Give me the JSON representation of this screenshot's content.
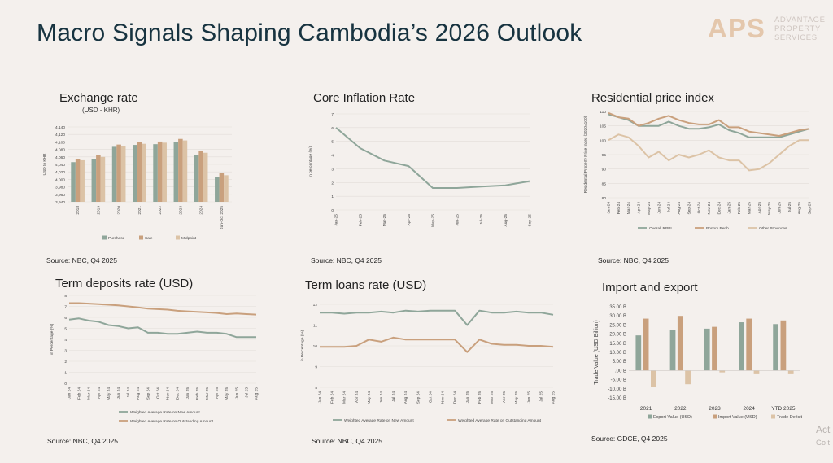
{
  "page": {
    "title": "Macro Signals Shaping Cambodia’s 2026 Outlook"
  },
  "logo": {
    "mark": "APS",
    "line1": "ADVANTAGE",
    "line2": "PROPERTY",
    "line3": "SERVICES"
  },
  "watermark": {
    "line1": "Act",
    "line2": "Go t"
  },
  "colors": {
    "purchase": "#8fa69a",
    "sale": "#c9a07d",
    "midpoint": "#dcc3a6",
    "green": "#8fa69a",
    "brown": "#c9a07d",
    "other": "#dcc3a6"
  },
  "chart_data": [
    {
      "id": "exchange",
      "type": "bar",
      "title": "Exchange rate",
      "subtitle": "(USD - KHR)",
      "source": "Source: NBC, Q4 2025",
      "ylabel": "USD to KHR",
      "ylim": [
        3940,
        4140
      ],
      "yticks": [
        3940,
        3960,
        3980,
        4000,
        4020,
        4040,
        4060,
        4080,
        4100,
        4120,
        4140
      ],
      "ytick_labels": [
        "3,940",
        "3,960",
        "3,980",
        "4,000",
        "4,020",
        "4,040",
        "4,060",
        "4,080",
        "4,100",
        "4,120",
        "4,140"
      ],
      "categories": [
        "2018",
        "2019",
        "2020",
        "2021",
        "2022",
        "2023",
        "2024",
        "Jan-Oct 2025"
      ],
      "series": [
        {
          "name": "Purchase",
          "color": "#8fa69a",
          "values": [
            4046,
            4055,
            4087,
            4092,
            4094,
            4100,
            4066,
            4006
          ]
        },
        {
          "name": "Sale",
          "color": "#c9a07d",
          "values": [
            4055,
            4066,
            4093,
            4099,
            4101,
            4108,
            4077,
            4017
          ]
        },
        {
          "name": "Midpoint",
          "color": "#dcc3a6",
          "values": [
            4051,
            4060,
            4090,
            4095,
            4098,
            4104,
            4071,
            4011
          ]
        }
      ]
    },
    {
      "id": "inflation",
      "type": "line",
      "title": "Core Inflation Rate",
      "source": "Source: NBC, Q4 2025",
      "ylabel": "in percentage (%)",
      "ylim": [
        0,
        7
      ],
      "yticks": [
        0,
        1,
        2,
        3,
        4,
        5,
        6,
        7
      ],
      "ytick_labels": [
        "0",
        "1",
        "2",
        "3",
        "4",
        "5",
        "6",
        "7"
      ],
      "categories": [
        "Jan-25",
        "Feb-25",
        "Mar-25",
        "Apr-25",
        "May-25",
        "Jun-25",
        "Jul-25",
        "Aug-25",
        "Sep-25"
      ],
      "series": [
        {
          "name": "",
          "color": "#8fa69a",
          "values": [
            6.0,
            4.5,
            3.6,
            3.2,
            1.6,
            1.6,
            1.7,
            1.8,
            2.1
          ]
        }
      ]
    },
    {
      "id": "rppi",
      "type": "line",
      "title": "Residential price index",
      "source": "Source: NBC, Q4 2025",
      "ylabel": "Residential Property Price Index (2020=100)",
      "ylim": [
        80,
        110
      ],
      "yticks": [
        80,
        85,
        90,
        95,
        100,
        105,
        110
      ],
      "ytick_labels": [
        "80",
        "85",
        "90",
        "95",
        "100",
        "105",
        "110"
      ],
      "categories": [
        "Jan-24",
        "Feb-24",
        "Mar-24",
        "Apr-24",
        "May-24",
        "Jun-24",
        "Jul-24",
        "Aug-24",
        "Sep-24",
        "Oct-24",
        "Nov-24",
        "Dec-24",
        "Jan-25",
        "Feb-25",
        "Mar-25",
        "Apr-25",
        "May-25",
        "Jun-25",
        "Jul-25",
        "Aug-25",
        "Sep-25"
      ],
      "series": [
        {
          "name": "Overall RPPI",
          "color": "#8fa69a",
          "values": [
            109,
            108,
            107,
            105,
            105,
            105,
            106.5,
            105,
            104,
            104,
            104.5,
            105.5,
            103.5,
            102.5,
            101,
            101,
            101,
            101,
            102,
            103,
            104
          ]
        },
        {
          "name": "Phnom Penh",
          "color": "#c9a07d",
          "values": [
            109.5,
            108,
            107.5,
            105,
            106,
            107.5,
            108.5,
            107,
            106,
            105.5,
            105.5,
            107,
            104.5,
            104.5,
            103,
            102.5,
            102,
            101.5,
            102.5,
            103.5,
            104
          ]
        },
        {
          "name": "Other Provinces",
          "color": "#dcc3a6",
          "values": [
            100,
            102,
            101,
            98,
            94,
            96,
            93,
            95,
            94,
            95,
            96.5,
            94,
            93,
            93,
            89.5,
            90,
            92,
            95,
            98,
            100,
            100
          ]
        }
      ]
    },
    {
      "id": "deposits",
      "type": "line",
      "title": "Term deposits rate (USD)",
      "source": "Source: NBC, Q4 2025",
      "ylabel": "in Percentage (%)",
      "ylim": [
        0,
        8
      ],
      "yticks": [
        0,
        1,
        2,
        3,
        4,
        5,
        6,
        7,
        8
      ],
      "ytick_labels": [
        "0",
        "1",
        "2",
        "3",
        "4",
        "5",
        "6",
        "7",
        "8"
      ],
      "categories": [
        "Jan 24",
        "Feb 24",
        "Mar 24",
        "Apr 24",
        "May 24",
        "Jun 24",
        "Jul 24",
        "Aug 24",
        "Sep 24",
        "Oct 24",
        "Nov 24",
        "Dec 24",
        "Jan 25",
        "Feb 25",
        "Mar 25",
        "Apr 25",
        "May 25",
        "Jun 25",
        "Jul 25",
        "Aug 25"
      ],
      "series": [
        {
          "name": "Weighted Average Rate on New Amount",
          "color": "#8fa69a",
          "values": [
            5.8,
            5.9,
            5.7,
            5.6,
            5.3,
            5.2,
            5.0,
            5.1,
            4.6,
            4.6,
            4.5,
            4.5,
            4.6,
            4.7,
            4.6,
            4.6,
            4.5,
            4.2,
            4.2,
            4.2
          ]
        },
        {
          "name": "Weighted Average Rate on Outstanding Amount",
          "color": "#c9a07d",
          "values": [
            7.3,
            7.3,
            7.25,
            7.2,
            7.15,
            7.1,
            7.0,
            6.9,
            6.8,
            6.75,
            6.7,
            6.6,
            6.55,
            6.5,
            6.45,
            6.4,
            6.3,
            6.35,
            6.3,
            6.25
          ]
        }
      ]
    },
    {
      "id": "loans",
      "type": "line",
      "title": "Term loans rate (USD)",
      "source": "Source: NBC, Q4 2025",
      "ylabel": "in Percentage (%)",
      "ylim": [
        8,
        12
      ],
      "yticks": [
        8,
        9,
        10,
        11,
        12
      ],
      "ytick_labels": [
        "8",
        "9",
        "10",
        "11",
        "12"
      ],
      "categories": [
        "Jan 24",
        "Feb 24",
        "Mar 24",
        "Apr 24",
        "May 24",
        "Jun 24",
        "Jul 24",
        "Aug 24",
        "Sep 24",
        "Oct 24",
        "Nov 24",
        "Dec 24",
        "Jan 25",
        "Feb 25",
        "Mar 25",
        "Apr 25",
        "May 25",
        "Jun 25",
        "Jul 25",
        "Aug 25"
      ],
      "series": [
        {
          "name": "Weighted Average Rate on New Amount",
          "color": "#8fa69a",
          "values": [
            11.6,
            11.6,
            11.55,
            11.6,
            11.6,
            11.65,
            11.6,
            11.7,
            11.65,
            11.7,
            11.7,
            11.7,
            11.0,
            11.7,
            11.6,
            11.6,
            11.65,
            11.6,
            11.6,
            11.5
          ]
        },
        {
          "name": "Weighted Average Rate on Outstanding Amount",
          "color": "#c9a07d",
          "values": [
            9.95,
            9.95,
            9.95,
            10.0,
            10.3,
            10.2,
            10.4,
            10.3,
            10.3,
            10.3,
            10.3,
            10.3,
            9.7,
            10.3,
            10.1,
            10.05,
            10.05,
            10.0,
            10.0,
            9.95
          ]
        }
      ]
    },
    {
      "id": "trade",
      "type": "bar",
      "title": "Import and export",
      "source": "Source: GDCE, Q4 2025",
      "ylabel": "Trade Value (USD Billion)",
      "ylim": [
        -15,
        35
      ],
      "yticks": [
        -15,
        -10,
        -5,
        0,
        5,
        10,
        15,
        20,
        25,
        30,
        35
      ],
      "ytick_labels": [
        "-15.00 B",
        "-10.00 B",
        "-5.00 B",
        ".00 B",
        "5.00 B",
        "10.00 B",
        "15.00 B",
        "20.00 B",
        "25.00 B",
        "30.00 B",
        "35.00 B"
      ],
      "categories": [
        "2021",
        "2022",
        "2023",
        "2024",
        "YTD 2025"
      ],
      "series": [
        {
          "name": "Export Value (USD)",
          "color": "#8fa69a",
          "values": [
            19.3,
            22.5,
            23.0,
            26.5,
            25.5
          ]
        },
        {
          "name": "Import Value (USD)",
          "color": "#c9a07d",
          "values": [
            28.5,
            30.0,
            24.0,
            28.5,
            27.5
          ]
        },
        {
          "name": "Trade Deficit",
          "color": "#dcc3a6",
          "values": [
            -9.2,
            -7.5,
            -1.0,
            -2.0,
            -2.0
          ]
        }
      ]
    }
  ]
}
